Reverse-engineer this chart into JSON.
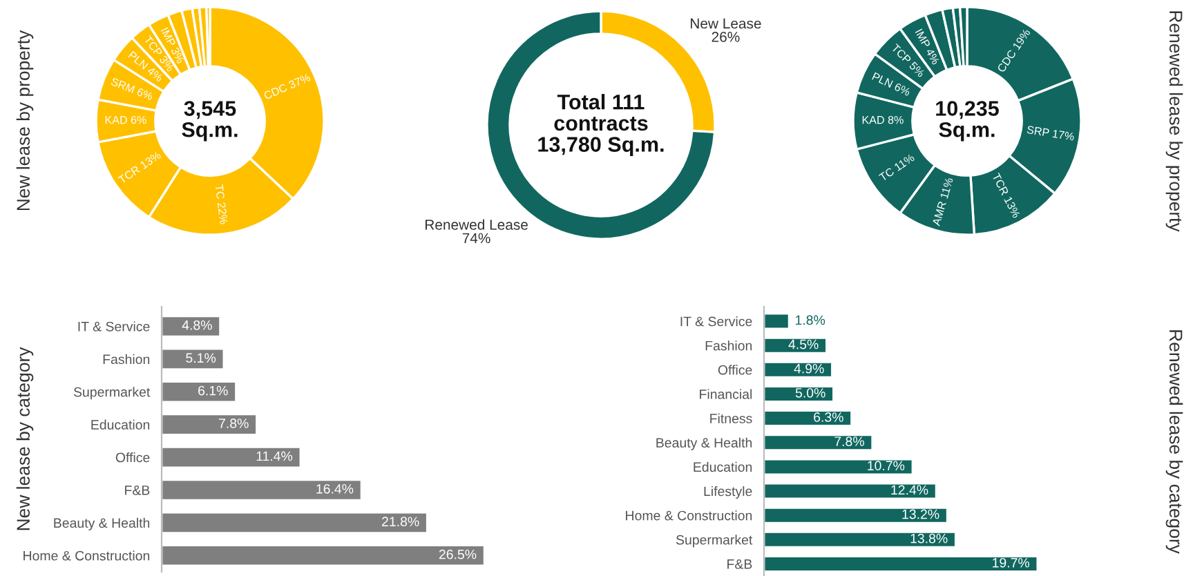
{
  "chart_data": [
    {
      "type": "donut",
      "ylabel": "New lease by property",
      "categories": [
        "CDC",
        "TC",
        "TCR",
        "KAD",
        "SRM",
        "PLN",
        "TCP",
        "IMP",
        null,
        null,
        null,
        null,
        null
      ],
      "values": [
        37,
        22,
        13,
        6,
        6,
        4,
        3,
        3,
        2,
        1.5,
        1,
        1,
        0.5
      ],
      "value_labels": [
        "37%",
        "22%",
        "13%",
        "6%",
        "6%",
        "4%",
        "3%",
        "3%",
        null,
        null,
        null,
        null,
        null
      ],
      "color": "#ffc000",
      "annotations": [
        "3,545\nSq.m."
      ]
    },
    {
      "type": "donut",
      "categories": [
        "New Lease",
        "Renewed Lease"
      ],
      "values": [
        26,
        74
      ],
      "value_labels": [
        "26%",
        "74%"
      ],
      "colors": [
        "#ffc000",
        "#11675f"
      ],
      "annotations": [
        "Total 111\ncontracts\n13,780 Sq.m."
      ]
    },
    {
      "type": "donut",
      "ylabel": "Renewed lease by property",
      "categories": [
        "CDC",
        "SRP",
        "TCR",
        "AMR",
        "TC",
        "KAD",
        "PLN",
        "TCP",
        "IMP",
        null,
        null,
        null,
        null
      ],
      "values": [
        19,
        17,
        13,
        11,
        11,
        8,
        6,
        5,
        4,
        2.5,
        1.5,
        1,
        1
      ],
      "value_labels": [
        "19%",
        "17%",
        "13%",
        "11%",
        "11%",
        "8%",
        "6%",
        "5%",
        "4%",
        null,
        null,
        null,
        null
      ],
      "color": "#11675f",
      "annotations": [
        "10,235\nSq.m."
      ]
    },
    {
      "type": "bar",
      "orientation": "horizontal",
      "ylabel": "New lease by category",
      "categories": [
        "IT & Service",
        "Fashion",
        "Supermarket",
        "Education",
        "Office",
        "F&B",
        "Beauty & Health",
        "Home & Construction"
      ],
      "values": [
        4.8,
        5.1,
        6.1,
        7.8,
        11.4,
        16.4,
        21.8,
        26.5
      ],
      "value_labels": [
        "4.8%",
        "5.1%",
        "6.1%",
        "7.8%",
        "11.4%",
        "16.4%",
        "21.8%",
        "26.5%"
      ],
      "color": "#7f7f7f"
    },
    {
      "type": "bar",
      "orientation": "horizontal",
      "ylabel": "Renewed lease by category",
      "categories": [
        "IT & Service",
        "Fashion",
        "Office",
        "Financial",
        "Fitness",
        "Beauty & Health",
        "Education",
        "Lifestyle",
        "Home & Construction",
        "Supermarket",
        "F&B"
      ],
      "values": [
        1.8,
        4.5,
        4.9,
        5.0,
        6.3,
        7.8,
        10.7,
        12.4,
        13.2,
        13.8,
        19.7
      ],
      "value_labels": [
        "1.8%",
        "4.5%",
        "4.9%",
        "5.0%",
        "6.3%",
        "7.8%",
        "10.7%",
        "12.4%",
        "13.2%",
        "13.8%",
        "19.7%"
      ],
      "color": "#11675f"
    }
  ]
}
